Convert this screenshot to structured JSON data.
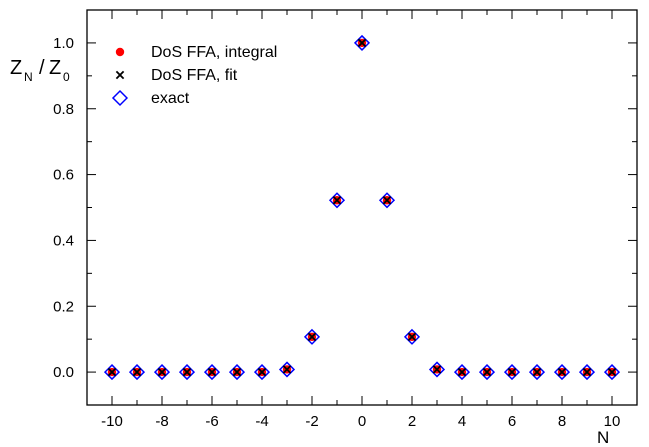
{
  "chart_data": {
    "type": "scatter",
    "xlabel": "N",
    "ylabel_main": "Z",
    "ylabel_main_sub": "N",
    "ylabel_sep": "/",
    "ylabel_den": "Z",
    "ylabel_den_sub": "0",
    "xlim": [
      -11,
      11
    ],
    "ylim": [
      -0.1,
      1.1
    ],
    "x_ticks": [
      -10,
      -8,
      -6,
      -4,
      -2,
      0,
      2,
      4,
      6,
      8,
      10
    ],
    "x_tick_labels": [
      "-10",
      "-8",
      "-6",
      "-4",
      "-2",
      "0",
      "2",
      "4",
      "6",
      "8",
      "10"
    ],
    "y_ticks": [
      0.0,
      0.2,
      0.4,
      0.6,
      0.8,
      1.0
    ],
    "y_tick_labels": [
      "0.0",
      "0.2",
      "0.4",
      "0.6",
      "0.8",
      "1.0"
    ],
    "grid": false,
    "legend_position": "top-left",
    "x": [
      -10,
      -9,
      -8,
      -7,
      -6,
      -5,
      -4,
      -3,
      -2,
      -1,
      0,
      1,
      2,
      3,
      4,
      5,
      6,
      7,
      8,
      9,
      10
    ],
    "series": [
      {
        "name": "DoS FFA, integral",
        "marker": "dot",
        "color": "#ff0000",
        "values": [
          0,
          0,
          0,
          0,
          0,
          0,
          0,
          0.008,
          0.107,
          0.522,
          1.0,
          0.522,
          0.107,
          0.008,
          0,
          0,
          0,
          0,
          0,
          0,
          0
        ]
      },
      {
        "name": "DoS FFA, fit",
        "marker": "x",
        "color": "#000000",
        "values": [
          0,
          0,
          0,
          0,
          0,
          0,
          0,
          0.008,
          0.107,
          0.522,
          1.0,
          0.522,
          0.107,
          0.008,
          0,
          0,
          0,
          0,
          0,
          0,
          0
        ]
      },
      {
        "name": "exact",
        "marker": "diamond",
        "color": "#0000ff",
        "values": [
          0,
          0,
          0,
          0,
          0,
          0,
          0,
          0.008,
          0.107,
          0.522,
          1.0,
          0.522,
          0.107,
          0.008,
          0,
          0,
          0,
          0,
          0,
          0,
          0
        ]
      }
    ]
  }
}
